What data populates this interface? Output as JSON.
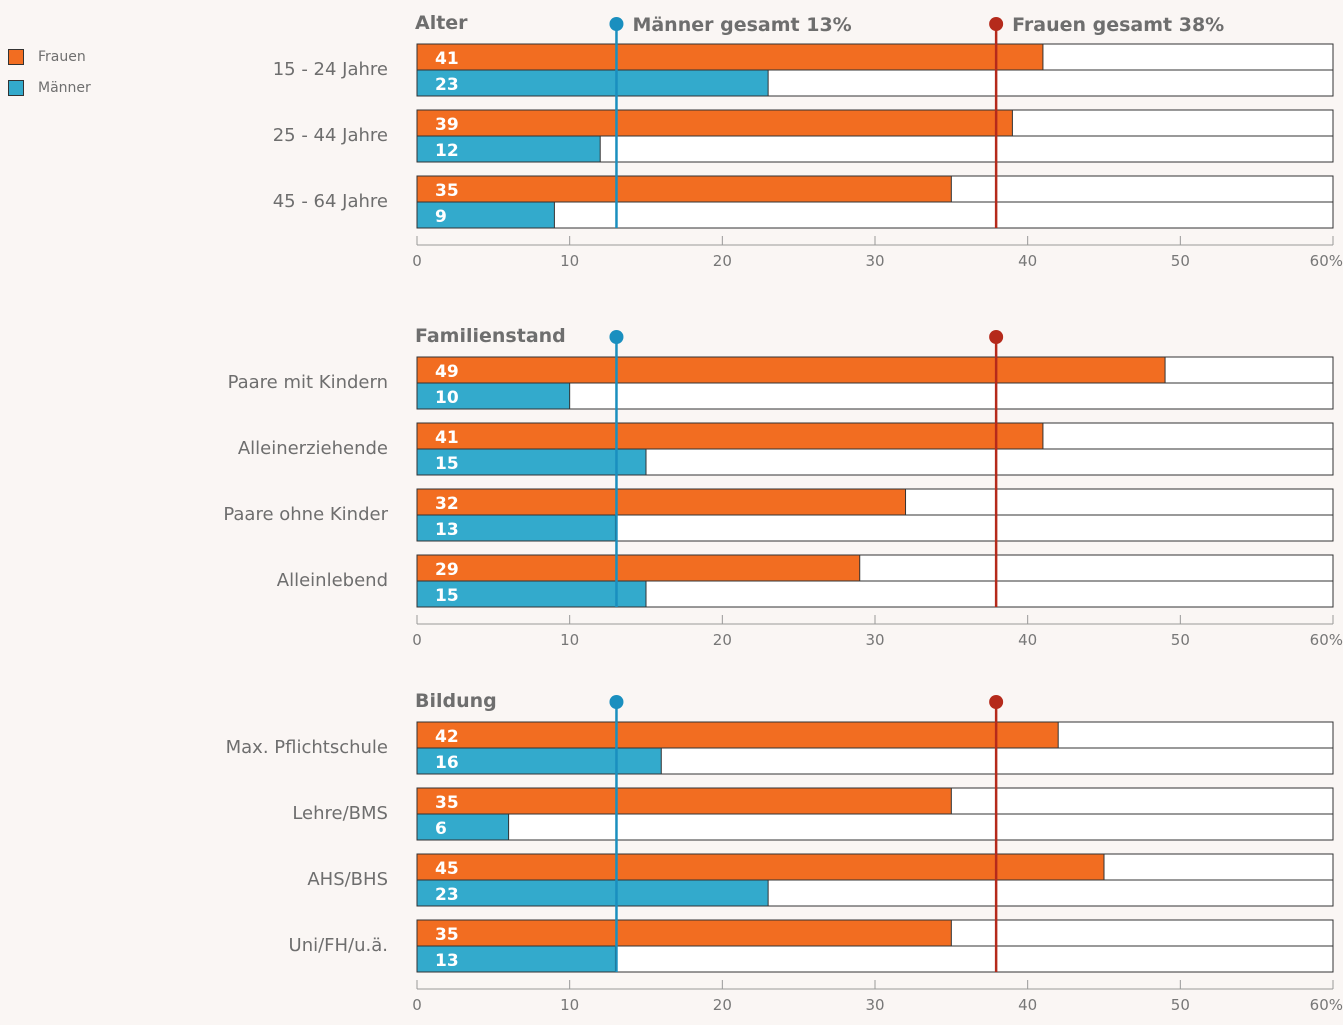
{
  "legend": {
    "frauen": "Frauen",
    "maenner": "Männer"
  },
  "colors": {
    "frauen": "#f26d21",
    "maenner": "#33aacc",
    "ref_frauen": "#b52a1b",
    "ref_maenner": "#1a8fbf"
  },
  "reference_lines": {
    "maenner": {
      "value": 13,
      "label": "Männer gesamt 13%"
    },
    "frauen": {
      "value": 38,
      "label": "Frauen gesamt 38%"
    }
  },
  "chart_data": [
    {
      "type": "bar",
      "title": "Alter",
      "categories": [
        "15 - 24 Jahre",
        "25 - 44 Jahre",
        "45 - 64 Jahre"
      ],
      "series": [
        {
          "name": "Frauen",
          "values": [
            41,
            39,
            35
          ]
        },
        {
          "name": "Männer",
          "values": [
            23,
            12,
            9
          ]
        }
      ],
      "xlim": [
        0,
        60
      ],
      "xticks": [
        "0",
        "10",
        "20",
        "30",
        "40",
        "50",
        "60%"
      ]
    },
    {
      "type": "bar",
      "title": "Familienstand",
      "categories": [
        "Paare mit Kindern",
        "Alleinerziehende",
        "Paare ohne Kinder",
        "Alleinlebend"
      ],
      "series": [
        {
          "name": "Frauen",
          "values": [
            49,
            41,
            32,
            29
          ]
        },
        {
          "name": "Männer",
          "values": [
            10,
            15,
            13,
            15
          ]
        }
      ],
      "xlim": [
        0,
        60
      ],
      "xticks": [
        "0",
        "10",
        "20",
        "30",
        "40",
        "50",
        "60%"
      ]
    },
    {
      "type": "bar",
      "title": "Bildung",
      "categories": [
        "Max. Pflichtschule",
        "Lehre/BMS",
        "AHS/BHS",
        "Uni/FH/u.ä."
      ],
      "series": [
        {
          "name": "Frauen",
          "values": [
            42,
            35,
            45,
            35
          ]
        },
        {
          "name": "Männer",
          "values": [
            16,
            6,
            23,
            13
          ]
        }
      ],
      "xlim": [
        0,
        60
      ],
      "xticks": [
        "0",
        "10",
        "20",
        "30",
        "40",
        "50",
        "60%"
      ]
    }
  ]
}
